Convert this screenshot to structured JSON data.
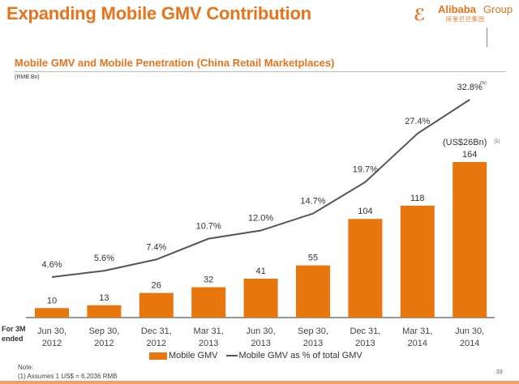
{
  "header": {
    "title": "Expanding Mobile GMV Contribution",
    "logo_mark": "ℰ",
    "logo_brand": "Alibaba",
    "logo_group": "Group",
    "logo_chinese": "阿里巴巴集团"
  },
  "chart_data": {
    "type": "bar+line",
    "title": "Mobile GMV and Mobile Penetration (China Retail Marketplaces)",
    "left_unit": "(RMB Bn)",
    "right_unit": "(%)",
    "x_prefix": "For 3M ended",
    "categories": [
      [
        "Jun 30,",
        "2012"
      ],
      [
        "Sep 30,",
        "2012"
      ],
      [
        "Dec 31,",
        "2012"
      ],
      [
        "Mar 31,",
        "2013"
      ],
      [
        "Jun 30,",
        "2013"
      ],
      [
        "Sep 30,",
        "2013"
      ],
      [
        "Dec 31,",
        "2013"
      ],
      [
        "Mar 31,",
        "2014"
      ],
      [
        "Jun 30,",
        "2014"
      ]
    ],
    "series": [
      {
        "name": "Mobile GMV",
        "type": "bar",
        "color": "#e8760f",
        "values": [
          10,
          13,
          26,
          32,
          41,
          55,
          104,
          118,
          164
        ],
        "labels": [
          "10",
          "13",
          "26",
          "32",
          "41",
          "55",
          "104",
          "118",
          "164"
        ]
      },
      {
        "name": "Mobile GMV as % of total GMV",
        "type": "line",
        "color": "#555555",
        "values": [
          4.6,
          5.6,
          7.4,
          10.7,
          12.0,
          14.7,
          19.7,
          27.4,
          32.8
        ],
        "labels": [
          "4.6%",
          "5.6%",
          "7.4%",
          "10.7%",
          "12.0%",
          "14.7%",
          "19.7%",
          "27.4%",
          "32.8%"
        ]
      }
    ],
    "annotation": {
      "text": "(US$26Bn)",
      "footnote_ref": "(1)",
      "category_index": 8
    },
    "bar_ylim": [
      0,
      164
    ],
    "line_ylim": [
      4.6,
      32.8
    ],
    "grid": false,
    "legend_position": "bottom"
  },
  "legend": {
    "bar_label": "Mobile GMV",
    "line_label": "Mobile GMV as % of total GMV"
  },
  "notes": {
    "heading": "Note:",
    "items": [
      "(1)    Assumes 1 US$ = 6.2036 RMB"
    ]
  },
  "footer": {
    "page_number": "33"
  }
}
